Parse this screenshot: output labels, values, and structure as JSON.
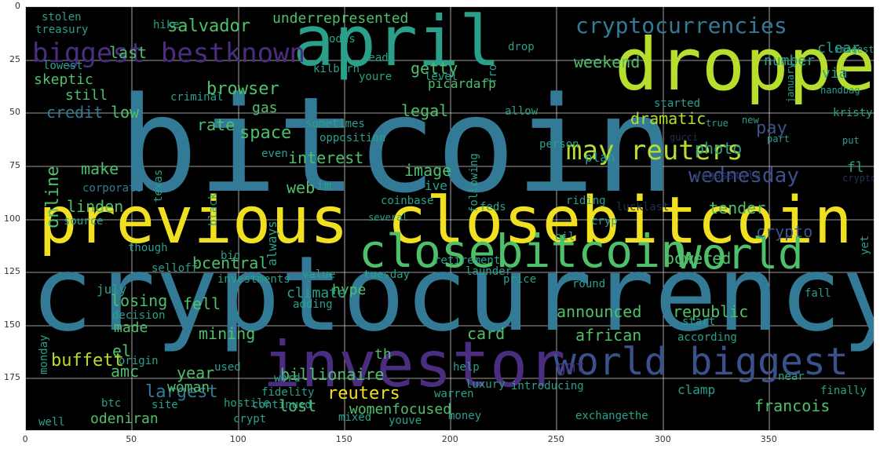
{
  "palette": {
    "yellow": "#f0e020",
    "lime": "#b7de2c",
    "green": "#4fc06a",
    "teal": "#2aa08a",
    "blue": "#337a96",
    "indigo": "#3b518b",
    "purple": "#4b2d7f",
    "dim": "#22314f",
    "frame_bg": "#000000",
    "grid": "#cfcfcf"
  },
  "axes": {
    "x_ticks": [
      "0",
      "50",
      "100",
      "150",
      "200",
      "250",
      "300",
      "350"
    ],
    "y_ticks": [
      "0",
      "25",
      "50",
      "75",
      "100",
      "125",
      "150",
      "175"
    ]
  },
  "words": [
    {
      "text": "bitcoin",
      "color": "blue"
    },
    {
      "text": "cryptocurrency",
      "color": "blue"
    },
    {
      "text": "previous closebitcoin",
      "color": "yellow"
    },
    {
      "text": "dropped",
      "color": "lime"
    },
    {
      "text": "april",
      "color": "teal"
    },
    {
      "text": "investor",
      "color": "purple"
    },
    {
      "text": "closebitcoin",
      "color": "green"
    },
    {
      "text": "world",
      "color": "green"
    },
    {
      "text": "world biggest",
      "color": "indigo"
    },
    {
      "text": "biggest bestknown",
      "color": "purple"
    },
    {
      "text": "cryptocurrencies",
      "color": "blue"
    },
    {
      "text": "may reuters",
      "color": "lime"
    },
    {
      "text": "wednesday",
      "color": "indigo"
    },
    {
      "text": "salvador",
      "color": "green"
    },
    {
      "text": "browser",
      "color": "green"
    },
    {
      "text": "dramatic",
      "color": "lime"
    },
    {
      "text": "announced",
      "color": "green"
    },
    {
      "text": "republic",
      "color": "green"
    },
    {
      "text": "african",
      "color": "green"
    },
    {
      "text": "reuters",
      "color": "yellow"
    },
    {
      "text": "largest",
      "color": "blue"
    },
    {
      "text": "buffett",
      "color": "lime"
    },
    {
      "text": "online",
      "color": "green"
    },
    {
      "text": "credit",
      "color": "blue"
    },
    {
      "text": "space",
      "color": "green"
    },
    {
      "text": "interest",
      "color": "green"
    },
    {
      "text": "image",
      "color": "green"
    },
    {
      "text": "legal",
      "color": "green"
    },
    {
      "text": "getty",
      "color": "green"
    },
    {
      "text": "rate",
      "color": "green"
    },
    {
      "text": "low",
      "color": "green"
    },
    {
      "text": "last",
      "color": "green"
    },
    {
      "text": "weekend",
      "color": "green"
    },
    {
      "text": "pay",
      "color": "indigo"
    },
    {
      "text": "crypto",
      "color": "indigo"
    },
    {
      "text": "tender",
      "color": "green"
    },
    {
      "text": "powered",
      "color": "green"
    },
    {
      "text": "bcentral",
      "color": "green"
    },
    {
      "text": "losing",
      "color": "green"
    },
    {
      "text": "fell",
      "color": "green"
    },
    {
      "text": "mining",
      "color": "green"
    },
    {
      "text": "card",
      "color": "green"
    },
    {
      "text": "gmt",
      "color": "purple"
    },
    {
      "text": "billionaire",
      "color": "green"
    },
    {
      "text": "year",
      "color": "green"
    },
    {
      "text": "amc",
      "color": "green"
    },
    {
      "text": "woman",
      "color": "green"
    },
    {
      "text": "lost",
      "color": "green"
    },
    {
      "text": "make",
      "color": "green"
    },
    {
      "text": "linden",
      "color": "green"
    },
    {
      "text": "web",
      "color": "green"
    },
    {
      "text": "hype",
      "color": "green"
    },
    {
      "text": "climate",
      "color": "teal"
    },
    {
      "text": "made",
      "color": "green"
    },
    {
      "text": "francois",
      "color": "green"
    },
    {
      "text": "odeniran",
      "color": "green"
    },
    {
      "text": "womenfocused",
      "color": "green"
    },
    {
      "text": "el",
      "color": "green"
    },
    {
      "text": "th",
      "color": "green"
    },
    {
      "text": "gas",
      "color": "green"
    },
    {
      "text": "skeptic",
      "color": "green"
    },
    {
      "text": "still",
      "color": "green"
    },
    {
      "text": "picardafp",
      "color": "green"
    },
    {
      "text": "underrepresented",
      "color": "green"
    },
    {
      "text": "stolen",
      "color": "teal"
    },
    {
      "text": "treasury",
      "color": "teal"
    },
    {
      "text": "lowest",
      "color": "teal"
    },
    {
      "text": "hike",
      "color": "teal"
    },
    {
      "text": "odds",
      "color": "teal"
    },
    {
      "text": "drop",
      "color": "teal"
    },
    {
      "text": "clear",
      "color": "teal"
    },
    {
      "text": "number",
      "color": "teal"
    },
    {
      "text": "via",
      "color": "teal"
    },
    {
      "text": "ready",
      "color": "teal"
    },
    {
      "text": "youre",
      "color": "teal"
    },
    {
      "text": "even",
      "color": "teal"
    },
    {
      "text": "opposition",
      "color": "teal"
    },
    {
      "text": "allow",
      "color": "teal"
    },
    {
      "text": "person",
      "color": "teal"
    },
    {
      "text": "started",
      "color": "teal"
    },
    {
      "text": "photo",
      "color": "teal"
    },
    {
      "text": "fl",
      "color": "teal"
    },
    {
      "text": "plan",
      "color": "teal"
    },
    {
      "text": "july",
      "color": "teal"
    },
    {
      "text": "source",
      "color": "teal"
    },
    {
      "text": "criminal",
      "color": "teal"
    },
    {
      "text": "texas",
      "color": "teal"
    },
    {
      "text": "kilburn",
      "color": "teal"
    },
    {
      "text": "level",
      "color": "teal"
    },
    {
      "text": "sometimes",
      "color": "teal"
    },
    {
      "text": "im",
      "color": "teal"
    },
    {
      "text": "ive",
      "color": "teal"
    },
    {
      "text": "coinbase",
      "color": "teal"
    },
    {
      "text": "feds",
      "color": "teal"
    },
    {
      "text": "following",
      "color": "teal"
    },
    {
      "text": "always",
      "color": "teal"
    },
    {
      "text": "black",
      "color": "teal"
    },
    {
      "text": "though",
      "color": "teal"
    },
    {
      "text": "selloff",
      "color": "teal"
    },
    {
      "text": "big",
      "color": "teal"
    },
    {
      "text": "investments",
      "color": "teal"
    },
    {
      "text": "value",
      "color": "teal"
    },
    {
      "text": "retirement",
      "color": "teal"
    },
    {
      "text": "launder",
      "color": "teal"
    },
    {
      "text": "tuesday",
      "color": "teal"
    },
    {
      "text": "price",
      "color": "teal"
    },
    {
      "text": "round",
      "color": "teal"
    },
    {
      "text": "adding",
      "color": "teal"
    },
    {
      "text": "decision",
      "color": "teal"
    },
    {
      "text": "origin",
      "color": "teal"
    },
    {
      "text": "fidelity",
      "color": "teal"
    },
    {
      "text": "help",
      "color": "teal"
    },
    {
      "text": "introducing",
      "color": "teal"
    },
    {
      "text": "according",
      "color": "teal"
    },
    {
      "text": "start",
      "color": "teal"
    },
    {
      "text": "near",
      "color": "teal"
    },
    {
      "text": "clamp",
      "color": "teal"
    },
    {
      "text": "warren",
      "color": "teal"
    },
    {
      "text": "btc",
      "color": "teal"
    },
    {
      "text": "site",
      "color": "teal"
    },
    {
      "text": "hostile",
      "color": "teal"
    },
    {
      "text": "used",
      "color": "teal"
    },
    {
      "text": "crypt",
      "color": "teal"
    },
    {
      "text": "well",
      "color": "teal"
    },
    {
      "text": "continued",
      "color": "teal"
    },
    {
      "text": "mixed",
      "color": "teal"
    },
    {
      "text": "youve",
      "color": "teal"
    },
    {
      "text": "money",
      "color": "teal"
    },
    {
      "text": "exchangethe",
      "color": "teal"
    },
    {
      "text": "finally",
      "color": "teal"
    },
    {
      "text": "word",
      "color": "teal"
    },
    {
      "text": "luxury",
      "color": "teal"
    },
    {
      "text": "fall",
      "color": "teal"
    },
    {
      "text": "yet",
      "color": "teal"
    },
    {
      "text": "monday",
      "color": "teal"
    },
    {
      "text": "corporate",
      "color": "blue"
    },
    {
      "text": "vegasstyle",
      "color": "dim"
    },
    {
      "text": "lucklast",
      "color": "dim"
    },
    {
      "text": "riding",
      "color": "teal"
    },
    {
      "text": "kristy",
      "color": "teal"
    },
    {
      "text": "cryp",
      "color": "teal"
    },
    {
      "text": "oil",
      "color": "teal"
    },
    {
      "text": "fro",
      "color": "teal"
    },
    {
      "text": "handbag",
      "color": "teal"
    },
    {
      "text": "january",
      "color": "teal"
    },
    {
      "text": "new",
      "color": "teal"
    },
    {
      "text": "put",
      "color": "teal"
    },
    {
      "text": "part",
      "color": "teal"
    },
    {
      "text": "several",
      "color": "teal"
    },
    {
      "text": "imagesthe",
      "color": "teal"
    },
    {
      "text": "true",
      "color": "teal"
    },
    {
      "text": "gucci",
      "color": "dim"
    },
    {
      "text": "cryptocurrencies",
      "color": "dim"
    },
    {
      "text": "today",
      "color": "dim"
    }
  ]
}
